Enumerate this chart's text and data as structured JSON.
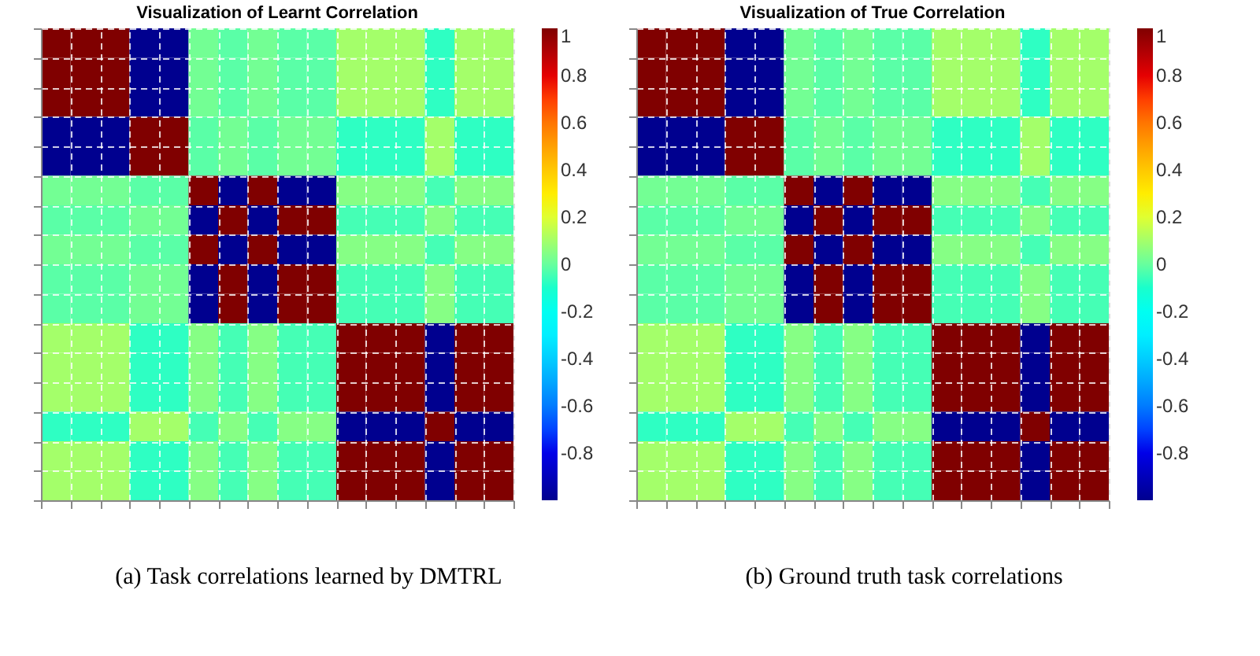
{
  "chart_data": [
    {
      "type": "heatmap",
      "title": "Visualization of Learnt Correlation",
      "annotations": [
        "(a)  Task correlations learned by DMTRL"
      ],
      "categories": [
        null,
        null,
        null,
        null,
        null,
        null,
        null,
        null,
        null,
        null,
        null,
        null,
        null,
        null,
        null,
        null
      ],
      "y_categories": [
        null,
        null,
        null,
        null,
        null,
        null,
        null,
        null,
        null,
        null,
        null,
        null,
        null,
        null,
        null,
        null
      ],
      "cells": [
        [
          1,
          1,
          1,
          -1,
          -1,
          0.02,
          -0.02,
          0.02,
          -0.02,
          -0.02,
          0.1,
          0.1,
          0.1,
          -0.08,
          0.1,
          0.1
        ],
        [
          1,
          1,
          1,
          -1,
          -1,
          0.02,
          -0.02,
          0.02,
          -0.02,
          -0.02,
          0.1,
          0.1,
          0.1,
          -0.08,
          0.1,
          0.1
        ],
        [
          1,
          1,
          1,
          -1,
          -1,
          0.02,
          -0.02,
          0.02,
          -0.02,
          -0.02,
          0.1,
          0.1,
          0.1,
          -0.08,
          0.1,
          0.1
        ],
        [
          -1,
          -1,
          -1,
          1,
          1,
          -0.02,
          0.02,
          -0.02,
          0.02,
          0.02,
          -0.08,
          -0.08,
          -0.08,
          0.1,
          -0.08,
          -0.08
        ],
        [
          -1,
          -1,
          -1,
          1,
          1,
          -0.02,
          0.02,
          -0.02,
          0.02,
          0.02,
          -0.08,
          -0.08,
          -0.08,
          0.1,
          -0.08,
          -0.08
        ],
        [
          0.02,
          0.02,
          0.02,
          -0.02,
          -0.02,
          1,
          -1,
          1,
          -1,
          -1,
          0.05,
          0.05,
          0.05,
          -0.05,
          0.05,
          0.05
        ],
        [
          -0.02,
          -0.02,
          -0.02,
          0.02,
          0.02,
          -1,
          1,
          -1,
          1,
          1,
          -0.05,
          -0.05,
          -0.05,
          0.05,
          -0.05,
          -0.05
        ],
        [
          0.02,
          0.02,
          0.02,
          -0.02,
          -0.02,
          1,
          -1,
          1,
          -1,
          -1,
          0.05,
          0.05,
          0.05,
          -0.05,
          0.05,
          0.05
        ],
        [
          -0.02,
          -0.02,
          -0.02,
          0.02,
          0.02,
          -1,
          1,
          -1,
          1,
          1,
          -0.05,
          -0.05,
          -0.05,
          0.05,
          -0.05,
          -0.05
        ],
        [
          -0.02,
          -0.02,
          -0.02,
          0.02,
          0.02,
          -1,
          1,
          -1,
          1,
          1,
          -0.05,
          -0.05,
          -0.05,
          0.05,
          -0.05,
          -0.05
        ],
        [
          0.1,
          0.1,
          0.1,
          -0.08,
          -0.08,
          0.05,
          -0.05,
          0.05,
          -0.05,
          -0.05,
          1,
          1,
          1,
          -1,
          1,
          1
        ],
        [
          0.1,
          0.1,
          0.1,
          -0.08,
          -0.08,
          0.05,
          -0.05,
          0.05,
          -0.05,
          -0.05,
          1,
          1,
          1,
          -1,
          1,
          1
        ],
        [
          0.1,
          0.1,
          0.1,
          -0.08,
          -0.08,
          0.05,
          -0.05,
          0.05,
          -0.05,
          -0.05,
          1,
          1,
          1,
          -1,
          1,
          1
        ],
        [
          -0.08,
          -0.08,
          -0.08,
          0.1,
          0.1,
          -0.05,
          0.05,
          -0.05,
          0.05,
          0.05,
          -1,
          -1,
          -1,
          1,
          -1,
          -1
        ],
        [
          0.1,
          0.1,
          0.1,
          -0.08,
          -0.08,
          0.05,
          -0.05,
          0.05,
          -0.05,
          -0.05,
          1,
          1,
          1,
          -1,
          1,
          1
        ],
        [
          0.1,
          0.1,
          0.1,
          -0.08,
          -0.08,
          0.05,
          -0.05,
          0.05,
          -0.05,
          -0.05,
          1,
          1,
          1,
          -1,
          1,
          1
        ]
      ],
      "clim": [
        -1,
        1
      ],
      "cticks": [
        -0.8,
        -0.6,
        -0.4,
        -0.2,
        0,
        0.2,
        0.4,
        0.6,
        0.8,
        1
      ],
      "grid": true,
      "tick_labels": false
    },
    {
      "type": "heatmap",
      "title": "Visualization of True Correlation",
      "annotations": [
        "(b)  Ground truth task correlations"
      ],
      "categories": [
        null,
        null,
        null,
        null,
        null,
        null,
        null,
        null,
        null,
        null,
        null,
        null,
        null,
        null,
        null,
        null
      ],
      "y_categories": [
        null,
        null,
        null,
        null,
        null,
        null,
        null,
        null,
        null,
        null,
        null,
        null,
        null,
        null,
        null,
        null
      ],
      "cells": [
        [
          1,
          1,
          1,
          -1,
          -1,
          0.02,
          -0.02,
          0.02,
          -0.02,
          -0.02,
          0.1,
          0.1,
          0.1,
          -0.08,
          0.1,
          0.1
        ],
        [
          1,
          1,
          1,
          -1,
          -1,
          0.02,
          -0.02,
          0.02,
          -0.02,
          -0.02,
          0.1,
          0.1,
          0.1,
          -0.08,
          0.1,
          0.1
        ],
        [
          1,
          1,
          1,
          -1,
          -1,
          0.02,
          -0.02,
          0.02,
          -0.02,
          -0.02,
          0.1,
          0.1,
          0.1,
          -0.08,
          0.1,
          0.1
        ],
        [
          -1,
          -1,
          -1,
          1,
          1,
          -0.02,
          0.02,
          -0.02,
          0.02,
          0.02,
          -0.08,
          -0.08,
          -0.08,
          0.1,
          -0.08,
          -0.08
        ],
        [
          -1,
          -1,
          -1,
          1,
          1,
          -0.02,
          0.02,
          -0.02,
          0.02,
          0.02,
          -0.08,
          -0.08,
          -0.08,
          0.1,
          -0.08,
          -0.08
        ],
        [
          0.02,
          0.02,
          0.02,
          -0.02,
          -0.02,
          1,
          -1,
          1,
          -1,
          -1,
          0.05,
          0.05,
          0.05,
          -0.05,
          0.05,
          0.05
        ],
        [
          -0.02,
          -0.02,
          -0.02,
          0.02,
          0.02,
          -1,
          1,
          -1,
          1,
          1,
          -0.05,
          -0.05,
          -0.05,
          0.05,
          -0.05,
          -0.05
        ],
        [
          0.02,
          0.02,
          0.02,
          -0.02,
          -0.02,
          1,
          -1,
          1,
          -1,
          -1,
          0.05,
          0.05,
          0.05,
          -0.05,
          0.05,
          0.05
        ],
        [
          -0.02,
          -0.02,
          -0.02,
          0.02,
          0.02,
          -1,
          1,
          -1,
          1,
          1,
          -0.05,
          -0.05,
          -0.05,
          0.05,
          -0.05,
          -0.05
        ],
        [
          -0.02,
          -0.02,
          -0.02,
          0.02,
          0.02,
          -1,
          1,
          -1,
          1,
          1,
          -0.05,
          -0.05,
          -0.05,
          0.05,
          -0.05,
          -0.05
        ],
        [
          0.1,
          0.1,
          0.1,
          -0.08,
          -0.08,
          0.05,
          -0.05,
          0.05,
          -0.05,
          -0.05,
          1,
          1,
          1,
          -1,
          1,
          1
        ],
        [
          0.1,
          0.1,
          0.1,
          -0.08,
          -0.08,
          0.05,
          -0.05,
          0.05,
          -0.05,
          -0.05,
          1,
          1,
          1,
          -1,
          1,
          1
        ],
        [
          0.1,
          0.1,
          0.1,
          -0.08,
          -0.08,
          0.05,
          -0.05,
          0.05,
          -0.05,
          -0.05,
          1,
          1,
          1,
          -1,
          1,
          1
        ],
        [
          -0.08,
          -0.08,
          -0.08,
          0.1,
          0.1,
          -0.05,
          0.05,
          -0.05,
          0.05,
          0.05,
          -1,
          -1,
          -1,
          1,
          -1,
          -1
        ],
        [
          0.1,
          0.1,
          0.1,
          -0.08,
          -0.08,
          0.05,
          -0.05,
          0.05,
          -0.05,
          -0.05,
          1,
          1,
          1,
          -1,
          1,
          1
        ],
        [
          0.1,
          0.1,
          0.1,
          -0.08,
          -0.08,
          0.05,
          -0.05,
          0.05,
          -0.05,
          -0.05,
          1,
          1,
          1,
          -1,
          1,
          1
        ]
      ],
      "clim": [
        -1,
        1
      ],
      "cticks": [
        -0.8,
        -0.6,
        -0.4,
        -0.2,
        0,
        0.2,
        0.4,
        0.6,
        0.8,
        1
      ],
      "grid": true,
      "tick_labels": false
    }
  ]
}
